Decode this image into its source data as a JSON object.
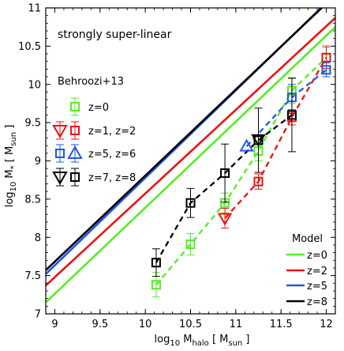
{
  "chart_data": {
    "type": "scatter",
    "title": "",
    "annotation": "strongly super-linear",
    "xlabel": "log10 Mhalo [ Msun ]",
    "xlabel_parts": {
      "prefix": "log",
      "prefix_sub": "10",
      "main": " M",
      "main_sub": "halo",
      "bracket_open": " [ M",
      "bracket_sub": "sun",
      "bracket_close": " ]"
    },
    "ylabel": "log10 M* [ Msun ]",
    "ylabel_parts": {
      "prefix": "log",
      "prefix_sub": "10",
      "main": " M",
      "main_sub": "*",
      "bracket_open": " [ M",
      "bracket_sub": "sun",
      "bracket_close": " ]"
    },
    "xlim": [
      8.9,
      12.1
    ],
    "ylim": [
      7.0,
      11.0
    ],
    "x_ticks": [
      9,
      9.5,
      10,
      10.5,
      11,
      11.5,
      12
    ],
    "x_tick_labels": [
      "9",
      "9.5",
      "10",
      "10.5",
      "11",
      "11.5",
      "12"
    ],
    "y_ticks": [
      7,
      7.5,
      8,
      8.5,
      9,
      9.5,
      10,
      10.5,
      11
    ],
    "y_tick_labels": [
      "7",
      "7.5",
      "8",
      "8.5",
      "9",
      "9.5",
      "10",
      "10.5",
      "11"
    ],
    "grid": false,
    "data_legend": {
      "title": "Behroozi+13",
      "position": "upper-left",
      "entries": [
        "z=0",
        "z=1, z=2",
        "z=5, z=6",
        "z=7, z=8"
      ]
    },
    "model_legend": {
      "title": "Model",
      "position": "lower-right",
      "entries": [
        "z=0",
        "z=2",
        "z=5",
        "z=8"
      ]
    },
    "model_lines": [
      {
        "name": "z=0",
        "color": "#55ee22",
        "x": [
          8.9,
          12.1
        ],
        "y": [
          7.15,
          10.75
        ]
      },
      {
        "name": "z=2",
        "color": "#ee1111",
        "x": [
          8.9,
          12.1
        ],
        "y": [
          7.37,
          10.87
        ]
      },
      {
        "name": "z=5",
        "color": "#2255ee",
        "x": [
          8.9,
          12.1
        ],
        "y": [
          7.52,
          11.18
        ]
      },
      {
        "name": "z=8",
        "color": "#000000",
        "x": [
          8.9,
          12.1
        ],
        "y": [
          7.57,
          11.17
        ]
      }
    ],
    "series": [
      {
        "name": "z=0",
        "color": "#55ee22",
        "marker": "square",
        "x": [
          10.12,
          10.5,
          10.88,
          11.25,
          11.62,
          12.0
        ],
        "y": [
          7.38,
          7.91,
          8.45,
          9.13,
          9.92,
          10.35
        ],
        "yerr": [
          0.16,
          0.14,
          0.13,
          0.13,
          0.17,
          0.16
        ]
      },
      {
        "name": "z=2",
        "color": "#ee1111",
        "marker": "square",
        "x": [
          11.25,
          11.62,
          12.0
        ],
        "y": [
          8.73,
          9.57,
          10.35
        ],
        "yerr": [
          0.1,
          0.1,
          0.14
        ]
      },
      {
        "name": "z=1",
        "color": "#ee1111",
        "marker": "triangle-down",
        "x": [
          10.88
        ],
        "y": [
          8.25
        ],
        "yerr": [
          0.13
        ]
      },
      {
        "name": "z=6",
        "color": "#2255ee",
        "marker": "square",
        "x": [
          11.62,
          12.0
        ],
        "y": [
          9.83,
          10.19
        ],
        "yerr": [
          0.17,
          0.09
        ]
      },
      {
        "name": "z=5",
        "color": "#2255ee",
        "marker": "triangle-up",
        "x": [
          11.12
        ],
        "y": [
          9.19
        ],
        "yerr": [
          0.0
        ]
      },
      {
        "name": "z=8",
        "color": "#000000",
        "marker": "square",
        "x": [
          10.12,
          10.5,
          10.88,
          11.25,
          11.62
        ],
        "y": [
          7.67,
          8.45,
          8.84,
          9.27,
          9.6
        ],
        "yerr": [
          0.18,
          0.19,
          0.38,
          0.42,
          0.48
        ]
      },
      {
        "name": "z=7",
        "color": "#000000",
        "marker": "triangle-down",
        "x": [
          11.25
        ],
        "y": [
          9.28
        ],
        "yerr": [
          0.0
        ]
      }
    ],
    "dashed_connectors": [
      {
        "name": "z=0",
        "color": "#55ee22",
        "x": [
          10.12,
          10.5,
          10.88,
          11.25,
          11.62,
          12.0
        ],
        "y": [
          7.38,
          7.91,
          8.45,
          9.13,
          9.92,
          10.35
        ]
      },
      {
        "name": "z=2",
        "color": "#ee1111",
        "x": [
          10.88,
          11.25,
          11.62,
          12.0
        ],
        "y": [
          8.25,
          8.73,
          9.57,
          10.35
        ]
      },
      {
        "name": "z=5",
        "color": "#2255ee",
        "x": [
          11.12,
          11.62,
          12.0
        ],
        "y": [
          9.19,
          9.83,
          10.19
        ]
      },
      {
        "name": "z=8",
        "color": "#000000",
        "x": [
          10.12,
          10.5,
          10.88,
          11.25,
          11.62
        ],
        "y": [
          7.67,
          8.45,
          8.84,
          9.27,
          9.6
        ]
      }
    ]
  }
}
